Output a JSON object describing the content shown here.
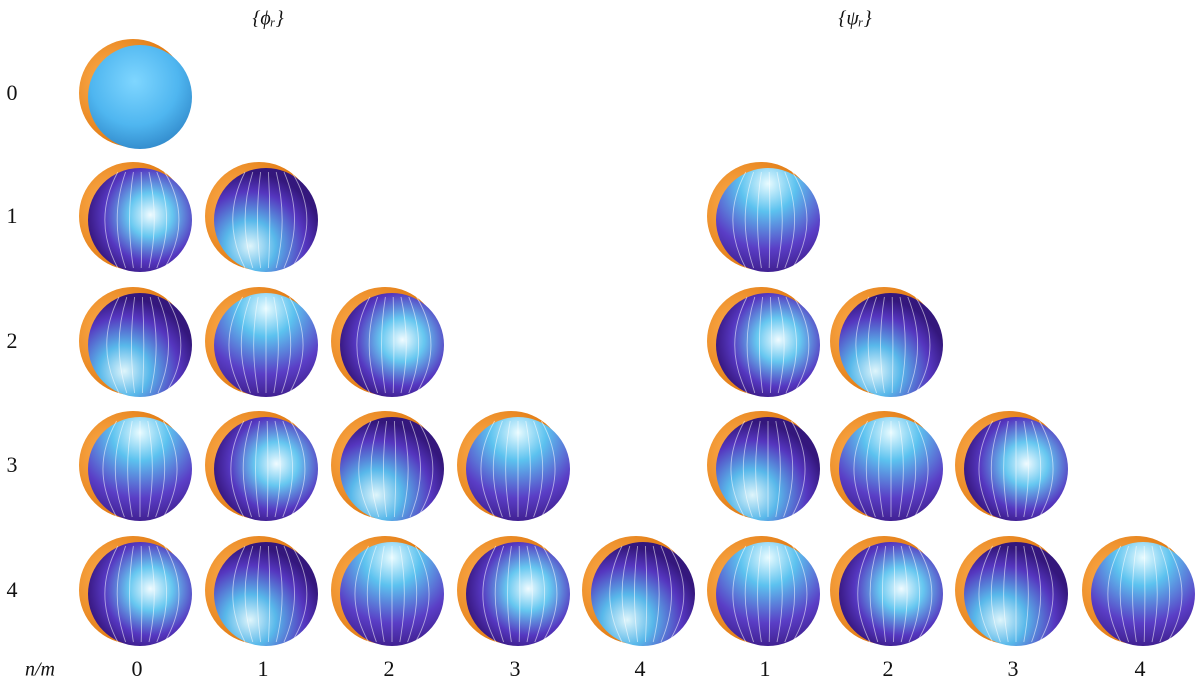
{
  "figure": {
    "panel_titles": [
      "{ϕᵣ}",
      "{ψᵣ}"
    ],
    "corner_label": "n/m",
    "row_labels": [
      "0",
      "1",
      "2",
      "3",
      "4"
    ],
    "column_labels": [
      "0",
      "1",
      "2",
      "3",
      "4",
      "1",
      "2",
      "3",
      "4"
    ]
  }
}
